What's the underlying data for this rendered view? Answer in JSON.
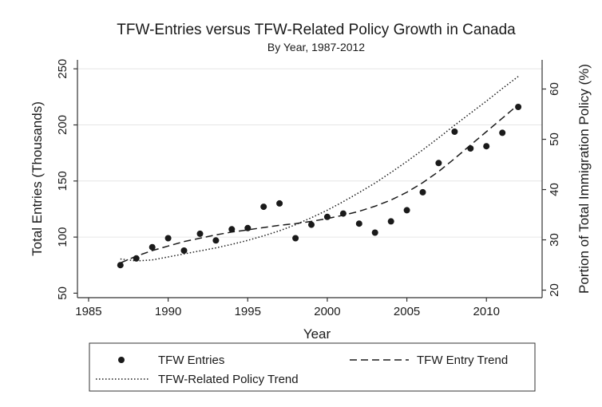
{
  "chart_data": {
    "type": "scatter",
    "title": "TFW-Entries versus TFW-Related Policy Growth in Canada",
    "subtitle": "By Year, 1987-2012",
    "xlabel": "Year",
    "ylabel_left": "Total Entries (Thousands)",
    "ylabel_right": "Portion of Total Immigration Policy (%)",
    "xlim": [
      1984.3,
      2013.5
    ],
    "ylim_left": [
      46,
      258
    ],
    "ylim_right": [
      18.5,
      65.8
    ],
    "x_ticks": [
      1985,
      1990,
      1995,
      2000,
      2005,
      2010
    ],
    "x_tick_labels": [
      "1985",
      "1990",
      "1995",
      "2000",
      "2005",
      "2010"
    ],
    "y_left_ticks": [
      50,
      100,
      150,
      200,
      250
    ],
    "y_left_tick_labels": [
      "50",
      "100",
      "150",
      "200",
      "250"
    ],
    "y_right_ticks": [
      20,
      30,
      40,
      50,
      60
    ],
    "y_right_tick_labels": [
      "20",
      "30",
      "40",
      "50",
      "60"
    ],
    "gridlines": "horizontal",
    "series": [
      {
        "name": "TFW Entries",
        "kind": "scatter",
        "axis": "left",
        "x": [
          1987,
          1988,
          1989,
          1990,
          1991,
          1992,
          1993,
          1994,
          1995,
          1996,
          1997,
          1998,
          1999,
          2000,
          2001,
          2002,
          2003,
          2004,
          2005,
          2006,
          2007,
          2008,
          2009,
          2010,
          2011,
          2012
        ],
        "y": [
          75,
          81,
          91,
          99,
          88,
          103,
          97,
          107,
          108,
          127,
          130,
          99,
          111,
          118,
          121,
          112,
          104,
          114,
          124,
          140,
          166,
          194,
          179,
          181,
          193,
          216
        ]
      },
      {
        "name": "TFW Entry Trend",
        "kind": "line",
        "style": "dashed",
        "axis": "left",
        "x": [
          1987,
          1988,
          1989,
          1990,
          1991,
          1992,
          1993,
          1994,
          1995,
          1996,
          1997,
          1998,
          1999,
          2000,
          2001,
          2002,
          2003,
          2004,
          2005,
          2006,
          2007,
          2008,
          2009,
          2010,
          2011,
          2012
        ],
        "y": [
          77,
          83,
          88,
          92,
          96,
          99,
          102,
          104.5,
          106.5,
          108.5,
          110.5,
          112,
          114,
          116.5,
          119.5,
          123,
          127.5,
          133,
          140,
          148.5,
          158.5,
          170,
          182,
          194,
          206,
          218
        ]
      },
      {
        "name": "TFW-Related Policy Trend",
        "kind": "line",
        "style": "dotted",
        "axis": "right",
        "x": [
          1987,
          1988,
          1989,
          1990,
          1991,
          1992,
          1993,
          1994,
          1995,
          1996,
          1997,
          1998,
          1999,
          2000,
          2001,
          2002,
          2003,
          2004,
          2005,
          2006,
          2007,
          2008,
          2009,
          2010,
          2011,
          2012
        ],
        "y": [
          26.2,
          25.8,
          26.0,
          26.6,
          27.2,
          27.8,
          28.4,
          29.1,
          29.9,
          30.8,
          31.8,
          33.0,
          34.4,
          35.9,
          37.6,
          39.4,
          41.3,
          43.4,
          45.6,
          47.9,
          50.3,
          52.8,
          55.2,
          57.6,
          60.1,
          62.5
        ]
      }
    ],
    "legend": {
      "placement": "bottom",
      "entries": [
        "TFW Entries",
        "TFW Entry Trend",
        "TFW-Related Policy Trend"
      ]
    }
  }
}
